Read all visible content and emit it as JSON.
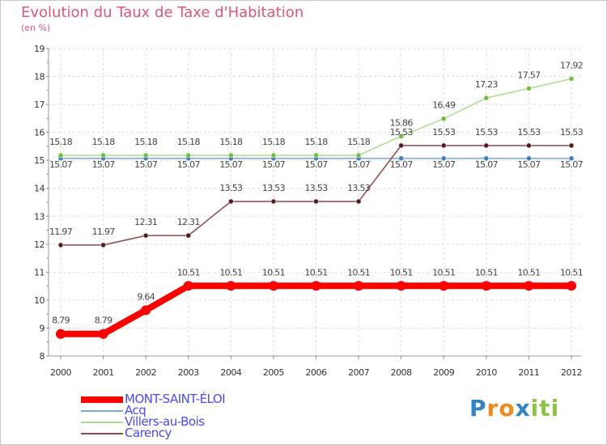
{
  "title": "Evolution du Taux de Taxe d'Habitation",
  "subtitle": "(en %)",
  "logo": {
    "letters": [
      {
        "ch": "P",
        "color": "#2e86c8"
      },
      {
        "ch": "r",
        "color": "#f08a1c"
      },
      {
        "ch": "o",
        "color": "#f08a1c"
      },
      {
        "ch": "x",
        "color": "#2e86c8"
      },
      {
        "ch": "i",
        "color": "#8cc63f"
      },
      {
        "ch": "t",
        "color": "#8cc63f"
      },
      {
        "ch": "i",
        "color": "#8cc63f"
      }
    ]
  },
  "chart_data": {
    "type": "line",
    "x": [
      "2000",
      "2001",
      "2002",
      "2003",
      "2004",
      "2005",
      "2006",
      "2007",
      "2008",
      "2009",
      "2010",
      "2011",
      "2012"
    ],
    "ylim": [
      8,
      19
    ],
    "yticks": [
      8,
      9,
      10,
      11,
      12,
      13,
      14,
      15,
      16,
      17,
      18,
      19
    ],
    "grid": true,
    "legend_position": "bottom-left",
    "series": [
      {
        "name": "MONT-SAINT-ÉLOI",
        "color": "#ff0000",
        "marker_color": "#ff0000",
        "values": [
          8.79,
          8.79,
          9.64,
          10.51,
          10.51,
          10.51,
          10.51,
          10.51,
          10.51,
          10.51,
          10.51,
          10.51,
          10.51
        ],
        "labels": [
          "8.79",
          "8.79",
          "9.64",
          "10.51",
          "10.51",
          "10.51",
          "10.51",
          "10.51",
          "10.51",
          "10.51",
          "10.51",
          "10.51",
          "10.51"
        ]
      },
      {
        "name": "Acq",
        "color": "#7aa8d4",
        "marker_color": "#3f7fc0",
        "values": [
          15.07,
          15.07,
          15.07,
          15.07,
          15.07,
          15.07,
          15.07,
          15.07,
          15.07,
          15.07,
          15.07,
          15.07,
          15.07
        ],
        "labels": [
          "15.07",
          "15.07",
          "15.07",
          "15.07",
          "15.07",
          "15.07",
          "15.07",
          "15.07",
          "15.07",
          "15.07",
          "15.07",
          "15.07",
          "15.07"
        ]
      },
      {
        "name": "Villers-au-Bois",
        "color": "#a9df88",
        "marker_color": "#6cc23a",
        "values": [
          15.18,
          15.18,
          15.18,
          15.18,
          15.18,
          15.18,
          15.18,
          15.18,
          15.86,
          16.49,
          17.23,
          17.57,
          17.92
        ],
        "labels": [
          "15.18",
          "15.18",
          "15.18",
          "15.18",
          "15.18",
          "15.18",
          "15.18",
          "15.18",
          "15.86",
          "16.49",
          "17.23",
          "17.57",
          "17.92"
        ]
      },
      {
        "name": "Carency",
        "color": "#8b4a4a",
        "marker_color": "#5a1a1a",
        "values": [
          11.97,
          11.97,
          12.31,
          12.31,
          13.53,
          13.53,
          13.53,
          13.53,
          15.53,
          15.53,
          15.53,
          15.53,
          15.53
        ],
        "labels": [
          "11.97",
          "11.97",
          "12.31",
          "12.31",
          "13.53",
          "13.53",
          "13.53",
          "13.53",
          "15.53",
          "15.53",
          "15.53",
          "15.53",
          "15.53"
        ]
      }
    ]
  }
}
